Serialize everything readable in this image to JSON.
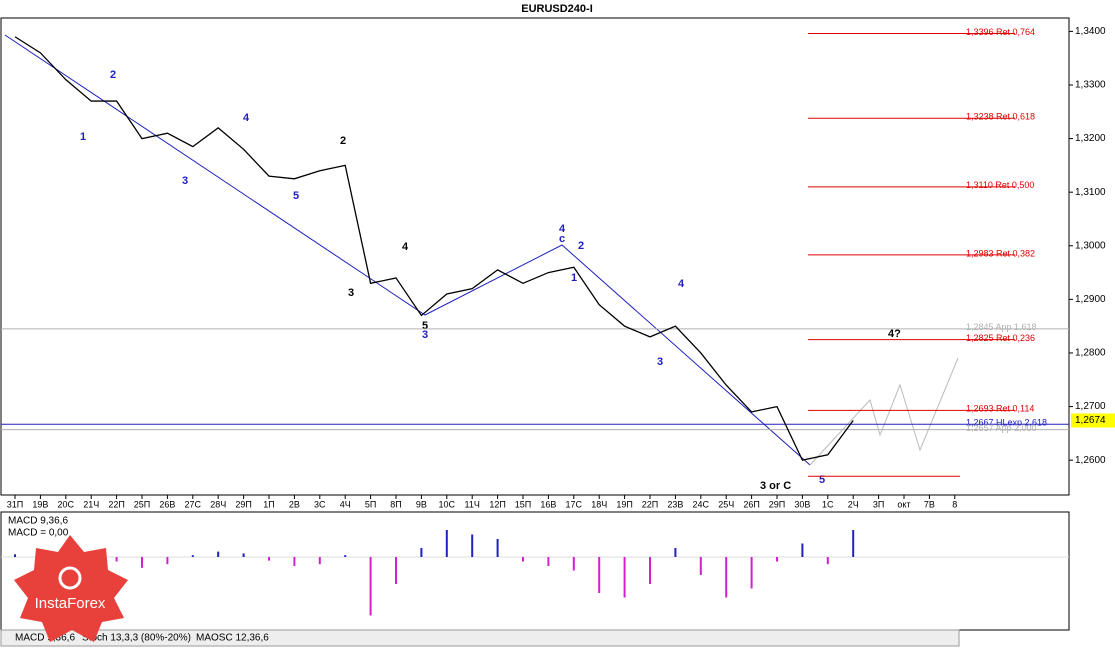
{
  "chart_data": {
    "type": "line",
    "title": "EURUSD240-I",
    "categories": [
      "31П",
      "19В",
      "20С",
      "21Ч",
      "22П",
      "25П",
      "26В",
      "27С",
      "28Ч",
      "29П",
      "1П",
      "2В",
      "3С",
      "4Ч",
      "5П",
      "8П",
      "9В",
      "10С",
      "11Ч",
      "12П",
      "15П",
      "16В",
      "17С",
      "18Ч",
      "19П",
      "22П",
      "23В",
      "24С",
      "25Ч",
      "26П",
      "29П",
      "30В",
      "1С",
      "2Ч",
      "3П",
      "окт",
      "7В",
      "8"
    ],
    "series": [
      {
        "name": "EURUSD240-I",
        "color": "#000000",
        "values": [
          1.339,
          1.336,
          1.331,
          1.327,
          1.327,
          1.32,
          1.321,
          1.3185,
          1.322,
          1.318,
          1.313,
          1.3125,
          1.314,
          1.315,
          1.293,
          1.294,
          1.287,
          1.291,
          1.292,
          1.2955,
          1.293,
          1.295,
          1.296,
          1.289,
          1.285,
          1.283,
          1.285,
          1.28,
          1.274,
          1.269,
          1.27,
          1.26,
          1.261,
          1.2674,
          null,
          null,
          null,
          null
        ]
      }
    ],
    "ylim": [
      1.2535,
      1.3425
    ],
    "yticks": [
      {
        "value": 1.34,
        "label": "1,3400"
      },
      {
        "value": 1.33,
        "label": "1,3300"
      },
      {
        "value": 1.32,
        "label": "1,3200"
      },
      {
        "value": 1.31,
        "label": "1,3100"
      },
      {
        "value": 1.3,
        "label": "1,3000"
      },
      {
        "value": 1.29,
        "label": "1,2900"
      },
      {
        "value": 1.28,
        "label": "1,2800"
      },
      {
        "value": 1.27,
        "label": "1,2700"
      },
      {
        "value": 1.26,
        "label": "1,2600"
      }
    ],
    "current_price": {
      "value": 1.2674,
      "label": "1,2674"
    },
    "levels": [
      {
        "value": 1.3396,
        "label": "1,3396 Ret 0,764",
        "color": "#e00000"
      },
      {
        "value": 1.3238,
        "label": "1,3238 Ret 0,618",
        "color": "#e00000"
      },
      {
        "value": 1.311,
        "label": "1,3110 Ret 0,500",
        "color": "#e00000"
      },
      {
        "value": 1.2983,
        "label": "1,2983 Ret 0,382",
        "color": "#e00000"
      },
      {
        "value": 1.2845,
        "label": "1,2845 App 1,618",
        "color": "#b0b0b0"
      },
      {
        "value": 1.2825,
        "label": "1,2825 Ret 0,236",
        "color": "#e00000"
      },
      {
        "value": 1.2693,
        "label": "1,2693 Ret 0,114",
        "color": "#e00000"
      },
      {
        "value": 1.2667,
        "label": "1,2667 HLexp 2,618",
        "color": "#2020c0"
      },
      {
        "value": 1.2657,
        "label": "1,2657 App 2,000",
        "color": "#b0b0b0"
      },
      {
        "value": 1.257,
        "color": "#e00000"
      }
    ],
    "annotations": [
      "2",
      "4",
      "5",
      "3",
      "1",
      "2",
      "4",
      "5",
      "3",
      "4",
      "c",
      "2",
      "1",
      "4",
      "3",
      "4?",
      "3 or C",
      "5",
      "3"
    ],
    "macd": {
      "label": "MACD 9,36,6",
      "value_label": "MACD = 0,00",
      "color": "#9000c0",
      "values": [
        3,
        2,
        0,
        -8,
        -5,
        -12,
        -8,
        2,
        6,
        4,
        -4,
        -10,
        -8,
        2,
        -65,
        -30,
        10,
        30,
        25,
        20,
        -5,
        -10,
        -15,
        -40,
        -45,
        -30,
        10,
        -20,
        -45,
        -35,
        -5,
        15,
        -8,
        30
      ]
    },
    "tabs": [
      "MACD 9,36,6",
      "Stoch 13,3,3 (80%-20%)",
      "MAOSC 12,36,6"
    ],
    "logo": "InstaForex"
  }
}
